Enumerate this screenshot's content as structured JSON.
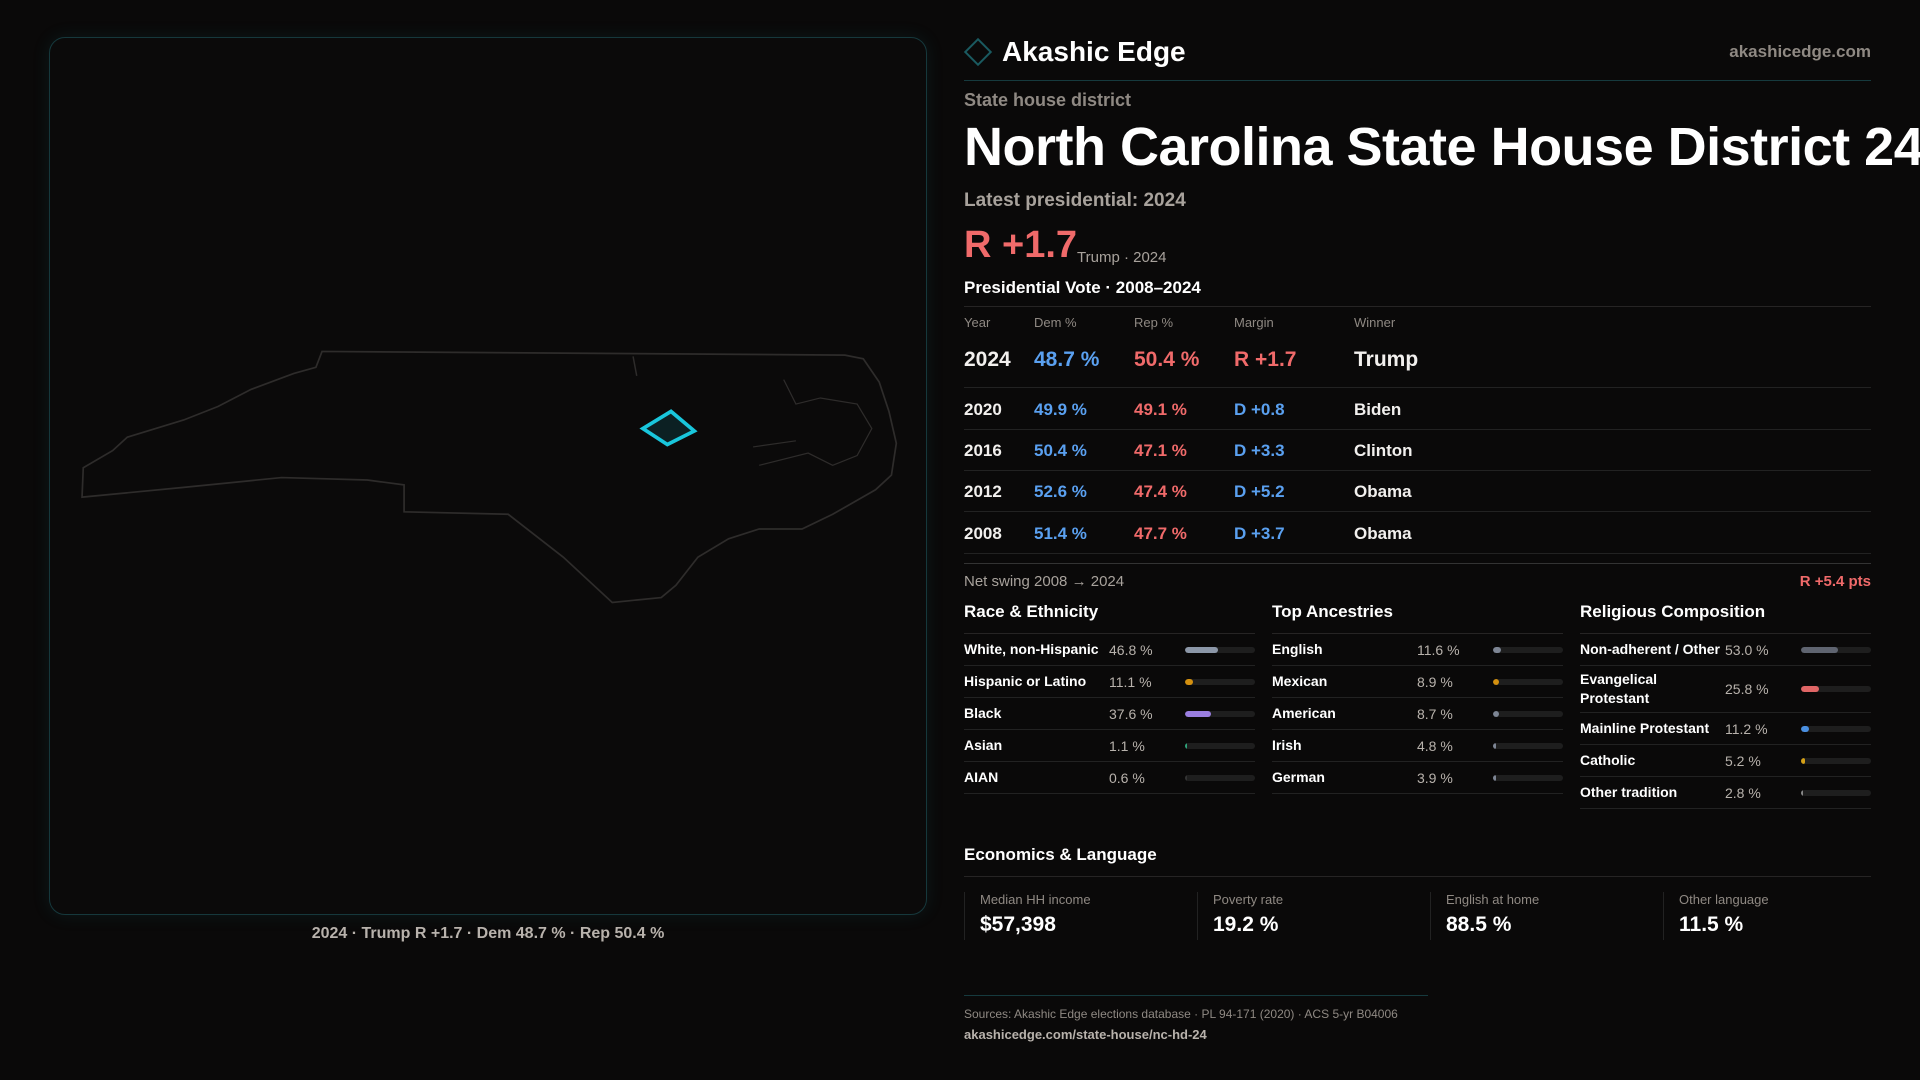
{
  "brand": {
    "name": "Akashic Edge",
    "site": "akashicedge.com"
  },
  "district": {
    "kind": "State house district",
    "title": "North Carolina State House District 24",
    "latest": "Latest presidential: 2024",
    "margin": "R +1.7",
    "margin_sub": "Trump · 2024"
  },
  "map": {
    "caption": "2024 · Trump R +1.7 · Dem 48.7 % · Rep 50.4 %",
    "highlight_color": "#19c6dc"
  },
  "presidential": {
    "title": "Presidential Vote · 2008–2024",
    "headers": [
      "Year",
      "Dem %",
      "Rep %",
      "Margin",
      "Winner"
    ],
    "rows": [
      {
        "year": "2024",
        "dem": "48.7 %",
        "rep": "50.4 %",
        "margin": "R +1.7",
        "winner": "Trump",
        "party": "R"
      },
      {
        "year": "2020",
        "dem": "49.9 %",
        "rep": "49.1 %",
        "margin": "D +0.8",
        "winner": "Biden",
        "party": "D"
      },
      {
        "year": "2016",
        "dem": "50.4 %",
        "rep": "47.1 %",
        "margin": "D +3.3",
        "winner": "Clinton",
        "party": "D"
      },
      {
        "year": "2012",
        "dem": "52.6 %",
        "rep": "47.4 %",
        "margin": "D +5.2",
        "winner": "Obama",
        "party": "D"
      },
      {
        "year": "2008",
        "dem": "51.4 %",
        "rep": "47.7 %",
        "margin": "D +3.7",
        "winner": "Obama",
        "party": "D"
      }
    ],
    "swing_label": "Net swing 2008 → 2024",
    "swing_value": "R +5.4 pts"
  },
  "sections": [
    {
      "title": "Race & Ethnicity",
      "items": [
        {
          "label": "White, non-Hispanic",
          "value": "46.8 %",
          "pct": 46.8,
          "color": "#8c97a8"
        },
        {
          "label": "Hispanic or Latino",
          "value": "11.1 %",
          "pct": 11.1,
          "color": "#d4900f"
        },
        {
          "label": "Black",
          "value": "37.6 %",
          "pct": 37.6,
          "color": "#9a7ee0"
        },
        {
          "label": "Asian",
          "value": "1.1 %",
          "pct": 1.1,
          "color": "#2fa37a"
        },
        {
          "label": "AIAN",
          "value": "0.6 %",
          "pct": 0.6,
          "color": "#333333"
        }
      ]
    },
    {
      "title": "Top Ancestries",
      "items": [
        {
          "label": "English",
          "value": "11.6 %",
          "pct": 11.6,
          "color": "#7d8594"
        },
        {
          "label": "Mexican",
          "value": "8.9 %",
          "pct": 8.9,
          "color": "#d4900f"
        },
        {
          "label": "American",
          "value": "8.7 %",
          "pct": 8.7,
          "color": "#7d8594"
        },
        {
          "label": "Irish",
          "value": "4.8 %",
          "pct": 4.8,
          "color": "#7d8594"
        },
        {
          "label": "German",
          "value": "3.9 %",
          "pct": 3.9,
          "color": "#7d8594"
        }
      ]
    },
    {
      "title": "Religious Composition",
      "items": [
        {
          "label": "Non-adherent / Other",
          "value": "53.0 %",
          "pct": 53.0,
          "color": "#5f6470"
        },
        {
          "label": "Evangelical Protestant",
          "value": "25.8 %",
          "pct": 25.8,
          "color": "#e06666"
        },
        {
          "label": "Mainline Protestant",
          "value": "11.2 %",
          "pct": 11.2,
          "color": "#4a8fe0"
        },
        {
          "label": "Catholic",
          "value": "5.2 %",
          "pct": 5.2,
          "color": "#d4a017"
        },
        {
          "label": "Other tradition",
          "value": "2.8 %",
          "pct": 2.8,
          "color": "#888888"
        }
      ]
    }
  ],
  "economics": {
    "title": "Economics & Language",
    "cards": [
      {
        "label": "Median HH income",
        "value": "$57,398"
      },
      {
        "label": "Poverty rate",
        "value": "19.2 %"
      },
      {
        "label": "English at home",
        "value": "88.5 %"
      },
      {
        "label": "Other language",
        "value": "11.5 %"
      }
    ]
  },
  "footer": {
    "sources": "Sources: Akashic Edge elections database · PL 94-171 (2020) · ACS 5-yr B04006",
    "url": "akashicedge.com/state-house/nc-hd-24"
  }
}
